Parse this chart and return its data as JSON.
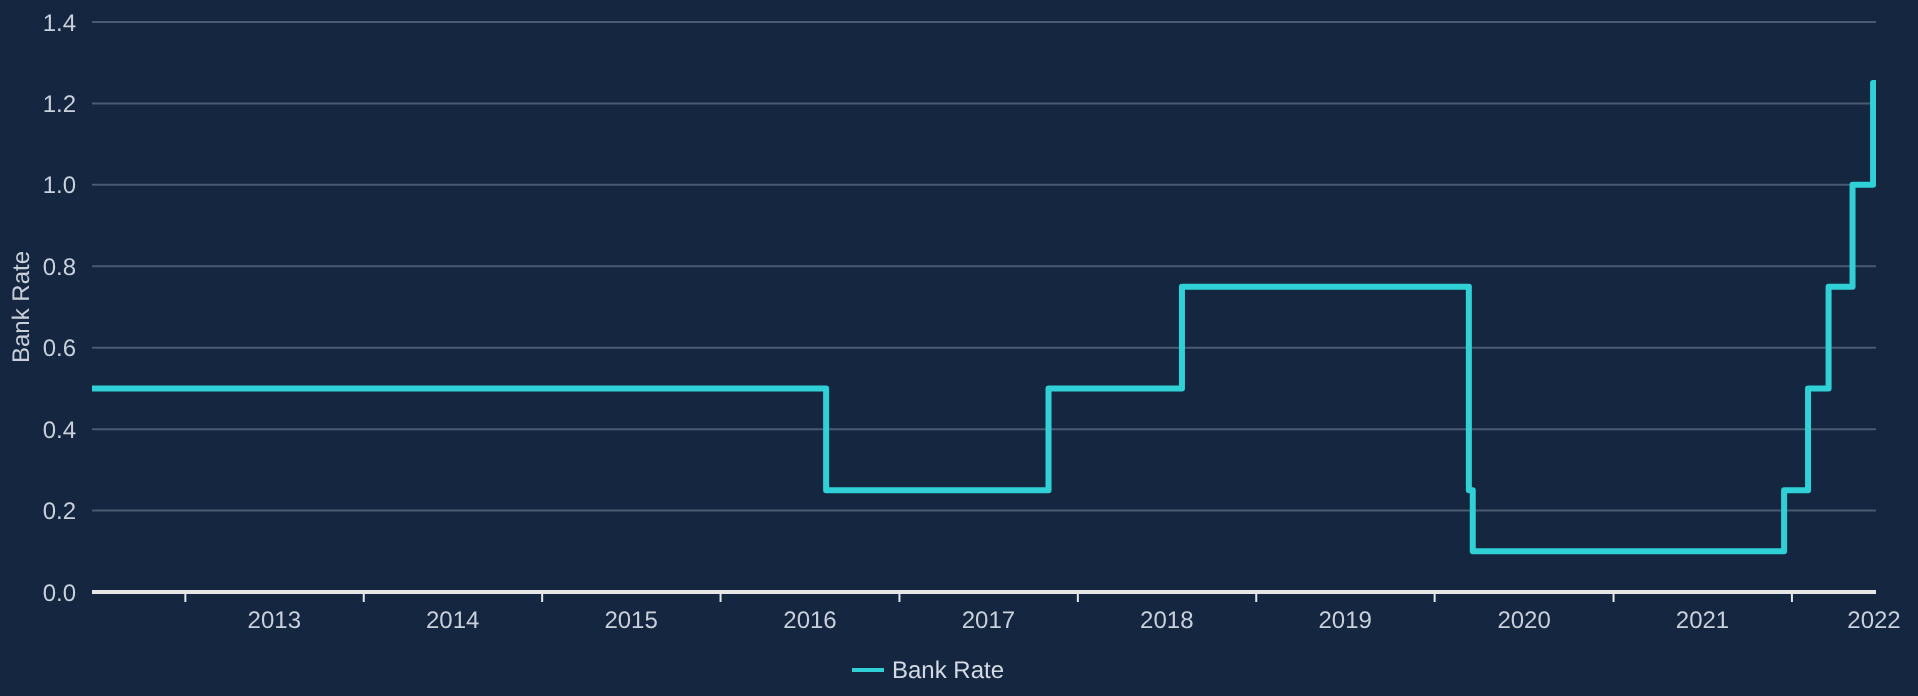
{
  "chart_data": {
    "type": "step",
    "ylabel": "Bank Rate",
    "x": [
      "2012-06-24",
      "2016-08-04",
      "2017-11-02",
      "2018-08-02",
      "2020-03-11",
      "2020-03-19",
      "2021-12-16",
      "2022-02-03",
      "2022-03-17",
      "2022-05-05",
      "2022-06-16",
      "2022-06-22"
    ],
    "series": [
      {
        "name": "Bank Rate",
        "color": "#2fd1d6",
        "values": [
          0.5,
          0.25,
          0.5,
          0.75,
          0.25,
          0.1,
          0.25,
          0.5,
          0.75,
          1.0,
          1.25,
          1.25
        ]
      }
    ],
    "xlim": [
      "2012-06-24",
      "2022-06-22"
    ],
    "xticks": [
      {
        "value": "2013-01-01",
        "label": null
      },
      {
        "value": "2013-07-02",
        "label": "2013"
      },
      {
        "value": "2014-01-01",
        "label": null
      },
      {
        "value": "2014-07-02",
        "label": "2014"
      },
      {
        "value": "2015-01-01",
        "label": null
      },
      {
        "value": "2015-07-02",
        "label": "2015"
      },
      {
        "value": "2016-01-01",
        "label": null
      },
      {
        "value": "2016-07-02",
        "label": "2016"
      },
      {
        "value": "2017-01-01",
        "label": null
      },
      {
        "value": "2017-07-02",
        "label": "2017"
      },
      {
        "value": "2018-01-01",
        "label": null
      },
      {
        "value": "2018-07-02",
        "label": "2018"
      },
      {
        "value": "2019-01-01",
        "label": null
      },
      {
        "value": "2019-07-02",
        "label": "2019"
      },
      {
        "value": "2020-01-01",
        "label": null
      },
      {
        "value": "2020-07-02",
        "label": "2020"
      },
      {
        "value": "2021-01-01",
        "label": null
      },
      {
        "value": "2021-07-02",
        "label": "2021"
      },
      {
        "value": "2022-01-01",
        "label": null
      },
      {
        "value": "2022-06-18",
        "label": "2022"
      }
    ],
    "ylim": [
      0,
      1.4
    ],
    "yticks": [
      {
        "value": 0,
        "label": "0.0"
      },
      0.2,
      0.4,
      0.6,
      0.8,
      {
        "value": 1,
        "label": "1.0"
      },
      1.2,
      1.4
    ],
    "grid": "y",
    "legend": "bottom",
    "marker": "none",
    "line_style": "solid"
  }
}
